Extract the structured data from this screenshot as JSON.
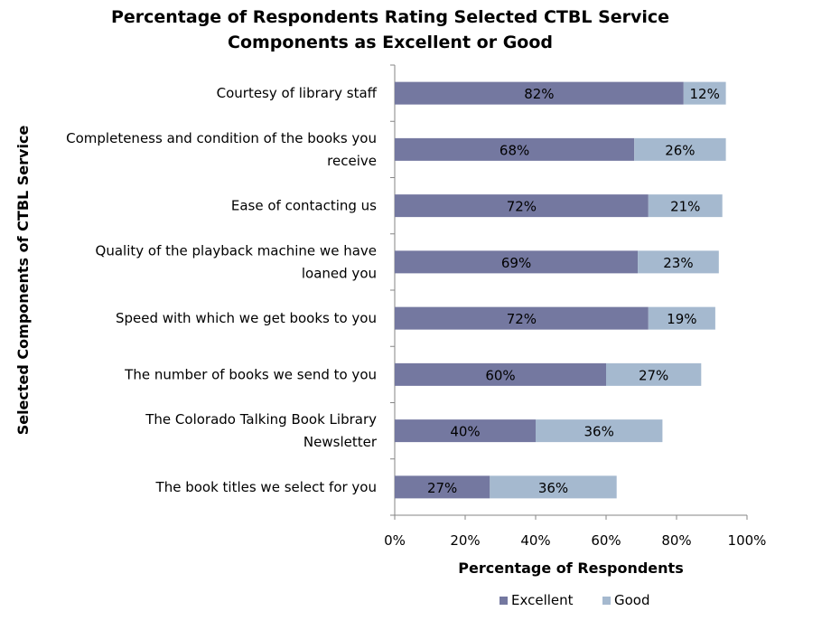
{
  "chart_data": {
    "type": "bar",
    "orientation": "horizontal",
    "stacked": true,
    "title_lines": [
      "Percentage of Respondents Rating Selected CTBL Service",
      "Components as Excellent or Good"
    ],
    "xlabel": "Percentage of Respondents",
    "ylabel": "Selected Components of CTBL Service",
    "xlim": [
      0,
      100
    ],
    "x_ticks": [
      "0%",
      "20%",
      "40%",
      "60%",
      "80%",
      "100%"
    ],
    "grid": false,
    "legend_position": "bottom",
    "categories": [
      [
        "Courtesy of library staff"
      ],
      [
        "Completeness and condition of the books you",
        "receive"
      ],
      [
        "Ease of contacting us"
      ],
      [
        "Quality of the playback machine we have",
        "loaned you"
      ],
      [
        "Speed with which we get books to you"
      ],
      [
        "The number of books we send to you"
      ],
      [
        "The Colorado Talking Book Library",
        "Newsletter"
      ],
      [
        "The book titles we select for you"
      ]
    ],
    "series": [
      {
        "name": "Excellent",
        "color": "#7478a0",
        "values": [
          82,
          68,
          72,
          69,
          72,
          60,
          40,
          27
        ],
        "labels": [
          "82%",
          "68%",
          "72%",
          "69%",
          "72%",
          "60%",
          "40%",
          "27%"
        ]
      },
      {
        "name": "Good",
        "color": "#a5b9cf",
        "values": [
          12,
          26,
          21,
          23,
          19,
          27,
          36,
          36
        ],
        "labels": [
          "12%",
          "26%",
          "21%",
          "23%",
          "19%",
          "27%",
          "36%",
          "36%"
        ]
      }
    ]
  }
}
